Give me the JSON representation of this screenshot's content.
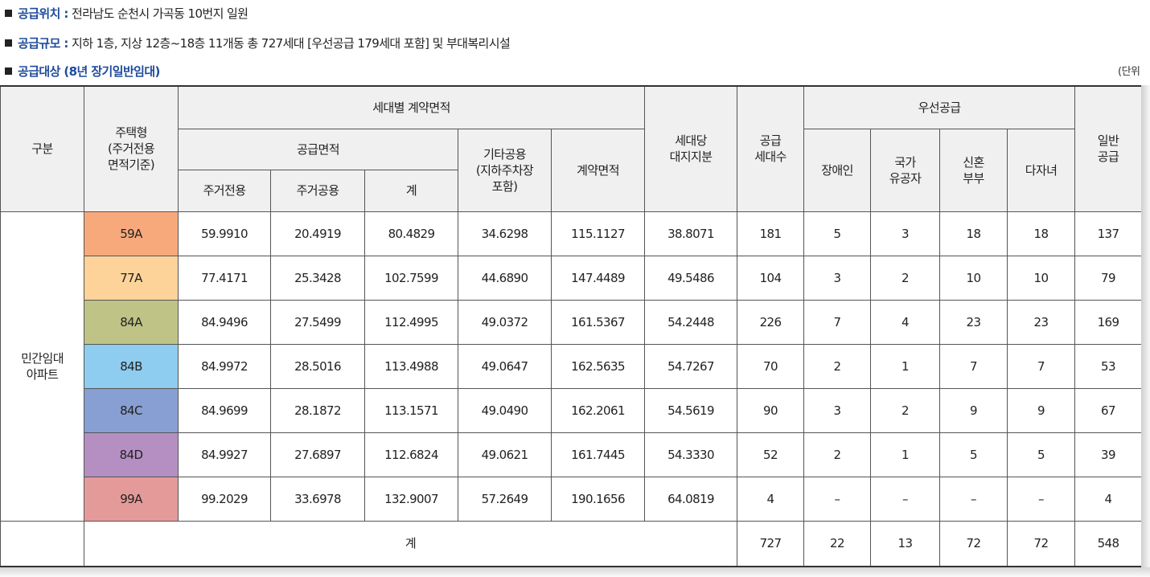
{
  "info": {
    "location_label": "공급위치 :",
    "location_value": "전라남도 순천시 가곡동 10번지 일원",
    "scale_label": "공급규모 :",
    "scale_value": "지하 1층, 지상 12층~18층 11개동 총 727세대 [우선공급 179세대 포함] 및 부대복리시설",
    "target_label": "공급대상 (8년 장기일반임대)",
    "unit_text": "(단위"
  },
  "table": {
    "headers": {
      "category": "구분",
      "housing_type": "주택형\n(주거전용\n면적기준)",
      "contract_area_group": "세대별 계약면적",
      "supply_area_group": "공급면적",
      "residential_exclusive": "주거전용",
      "residential_common": "주거공용",
      "subtotal": "계",
      "other_common": "기타공용\n(지하주차장\n포함)",
      "contract_area": "계약면적",
      "land_share": "세대당\n대지지분",
      "supply_units": "공급\n세대수",
      "priority_group": "우선공급",
      "disabled": "장애인",
      "veterans": "국가\n유공자",
      "newlyweds": "신혼\n부부",
      "multi_child": "다자녀",
      "general_supply": "일반\n공급"
    },
    "group_label": "민간임대\n아파트",
    "rows": [
      {
        "type": "59A",
        "color": "#f7a97c",
        "excl": "59.9910",
        "comm": "20.4919",
        "sub": "80.4829",
        "other": "34.6298",
        "contract": "115.1127",
        "land": "38.8071",
        "units": "181",
        "disabled": "5",
        "veterans": "3",
        "newlyweds": "18",
        "multi": "18",
        "general": "137"
      },
      {
        "type": "77A",
        "color": "#fdd39a",
        "excl": "77.4171",
        "comm": "25.3428",
        "sub": "102.7599",
        "other": "44.6890",
        "contract": "147.4489",
        "land": "49.5486",
        "units": "104",
        "disabled": "3",
        "veterans": "2",
        "newlyweds": "10",
        "multi": "10",
        "general": "79"
      },
      {
        "type": "84A",
        "color": "#bfc386",
        "excl": "84.9496",
        "comm": "27.5499",
        "sub": "112.4995",
        "other": "49.0372",
        "contract": "161.5367",
        "land": "54.2448",
        "units": "226",
        "disabled": "7",
        "veterans": "4",
        "newlyweds": "23",
        "multi": "23",
        "general": "169"
      },
      {
        "type": "84B",
        "color": "#8ecdef",
        "excl": "84.9972",
        "comm": "28.5016",
        "sub": "113.4988",
        "other": "49.0647",
        "contract": "162.5635",
        "land": "54.7267",
        "units": "70",
        "disabled": "2",
        "veterans": "1",
        "newlyweds": "7",
        "multi": "7",
        "general": "53"
      },
      {
        "type": "84C",
        "color": "#889fd3",
        "excl": "84.9699",
        "comm": "28.1872",
        "sub": "113.1571",
        "other": "49.0490",
        "contract": "162.2061",
        "land": "54.5619",
        "units": "90",
        "disabled": "3",
        "veterans": "2",
        "newlyweds": "9",
        "multi": "9",
        "general": "67"
      },
      {
        "type": "84D",
        "color": "#b58fc2",
        "excl": "84.9927",
        "comm": "27.6897",
        "sub": "112.6824",
        "other": "49.0621",
        "contract": "161.7445",
        "land": "54.3330",
        "units": "52",
        "disabled": "2",
        "veterans": "1",
        "newlyweds": "5",
        "multi": "5",
        "general": "39"
      },
      {
        "type": "99A",
        "color": "#e59a9a",
        "excl": "99.2029",
        "comm": "33.6978",
        "sub": "132.9007",
        "other": "57.2649",
        "contract": "190.1656",
        "land": "64.0819",
        "units": "4",
        "disabled": "–",
        "veterans": "–",
        "newlyweds": "–",
        "multi": "–",
        "general": "4"
      }
    ],
    "total": {
      "label": "계",
      "units": "727",
      "disabled": "22",
      "veterans": "13",
      "newlyweds": "72",
      "multi": "72",
      "general": "548"
    }
  }
}
